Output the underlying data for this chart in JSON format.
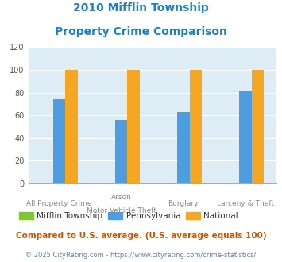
{
  "title_line1": "2010 Mifflin Township",
  "title_line2": "Property Crime Comparison",
  "cat_labels_line1": [
    "All Property Crime",
    "Arson",
    "Burglary",
    "Larceny & Theft"
  ],
  "cat_labels_line2": [
    "",
    "Motor Vehicle Theft",
    "",
    ""
  ],
  "mifflin": [
    0,
    0,
    0,
    0
  ],
  "pennsylvania": [
    74,
    56,
    63,
    81
  ],
  "national": [
    100,
    100,
    100,
    100
  ],
  "colors_mifflin": "#7dc832",
  "colors_pennsylvania": "#4d9de0",
  "colors_national": "#f5a623",
  "ylim": [
    0,
    120
  ],
  "yticks": [
    0,
    20,
    40,
    60,
    80,
    100,
    120
  ],
  "bg_color": "#deedf5",
  "legend_labels": [
    "Mifflin Township",
    "Pennsylvania",
    "National"
  ],
  "footnote1": "Compared to U.S. average. (U.S. average equals 100)",
  "footnote2": "© 2025 CityRating.com - https://www.cityrating.com/crime-statistics/",
  "title_color": "#1a80cc",
  "footnote1_color": "#cc5500",
  "footnote2_color": "#5588aa",
  "xlabel_color": "#888888",
  "grid_color": "#ffffff",
  "spine_color": "#aaaaaa"
}
